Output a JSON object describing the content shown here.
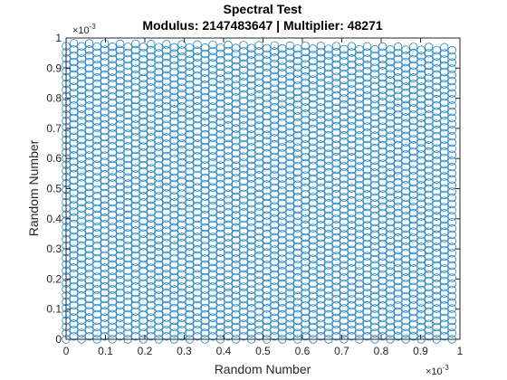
{
  "chart_data": {
    "type": "scatter",
    "title": "Spectral Test",
    "subtitle": "Modulus: 2147483647 | Multiplier: 48271",
    "xlabel": "Random Number",
    "ylabel": "Random Number",
    "xlim": [
      0,
      0.001
    ],
    "ylim": [
      0,
      0.001
    ],
    "x_ticks": [
      "0",
      "0.1",
      "0.2",
      "0.3",
      "0.4",
      "0.5",
      "0.6",
      "0.7",
      "0.8",
      "0.9",
      "1"
    ],
    "y_ticks": [
      "0",
      "0.1",
      "0.2",
      "0.3",
      "0.4",
      "0.5",
      "0.6",
      "0.7",
      "0.8",
      "0.9",
      "1"
    ],
    "x_exponent": "×10",
    "x_exponent_power": "-3",
    "y_exponent": "×10",
    "y_exponent_power": "-3",
    "marker": "circle",
    "series_color": "#0072BD",
    "grid": false,
    "lattice": {
      "columns": 51,
      "rows": 48,
      "column_step": 1.96e-05,
      "row_step": 2.07e-05,
      "row_offset": 9.8e-06
    }
  }
}
